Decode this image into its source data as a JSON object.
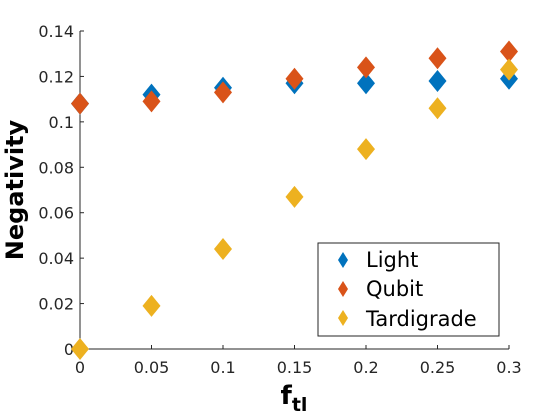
{
  "chart_data": {
    "type": "scatter",
    "title": "",
    "xlabel": "f",
    "xlabel_subscript": "tl",
    "ylabel": "Negativity",
    "xlim": [
      0,
      0.3
    ],
    "ylim": [
      0,
      0.14
    ],
    "xticks": [
      "0",
      "0.05",
      "0.1",
      "0.15",
      "0.2",
      "0.25",
      "0.3"
    ],
    "yticks": [
      "0",
      "0.02",
      "0.04",
      "0.06",
      "0.08",
      "0.1",
      "0.12",
      "0.14"
    ],
    "grid": false,
    "legend_position": "bottom-right",
    "x": [
      0,
      0.05,
      0.1,
      0.15,
      0.2,
      0.25,
      0.3
    ],
    "series": [
      {
        "name": "Light",
        "color": "#0072BD",
        "values": [
          0.108,
          0.112,
          0.115,
          0.117,
          0.117,
          0.118,
          0.119
        ]
      },
      {
        "name": "Qubit",
        "color": "#D95319",
        "values": [
          0.108,
          0.109,
          0.113,
          0.119,
          0.124,
          0.128,
          0.131
        ]
      },
      {
        "name": "Tardigrade",
        "color": "#EDB120",
        "values": [
          0.0,
          0.019,
          0.044,
          0.067,
          0.088,
          0.106,
          0.123
        ]
      }
    ]
  }
}
